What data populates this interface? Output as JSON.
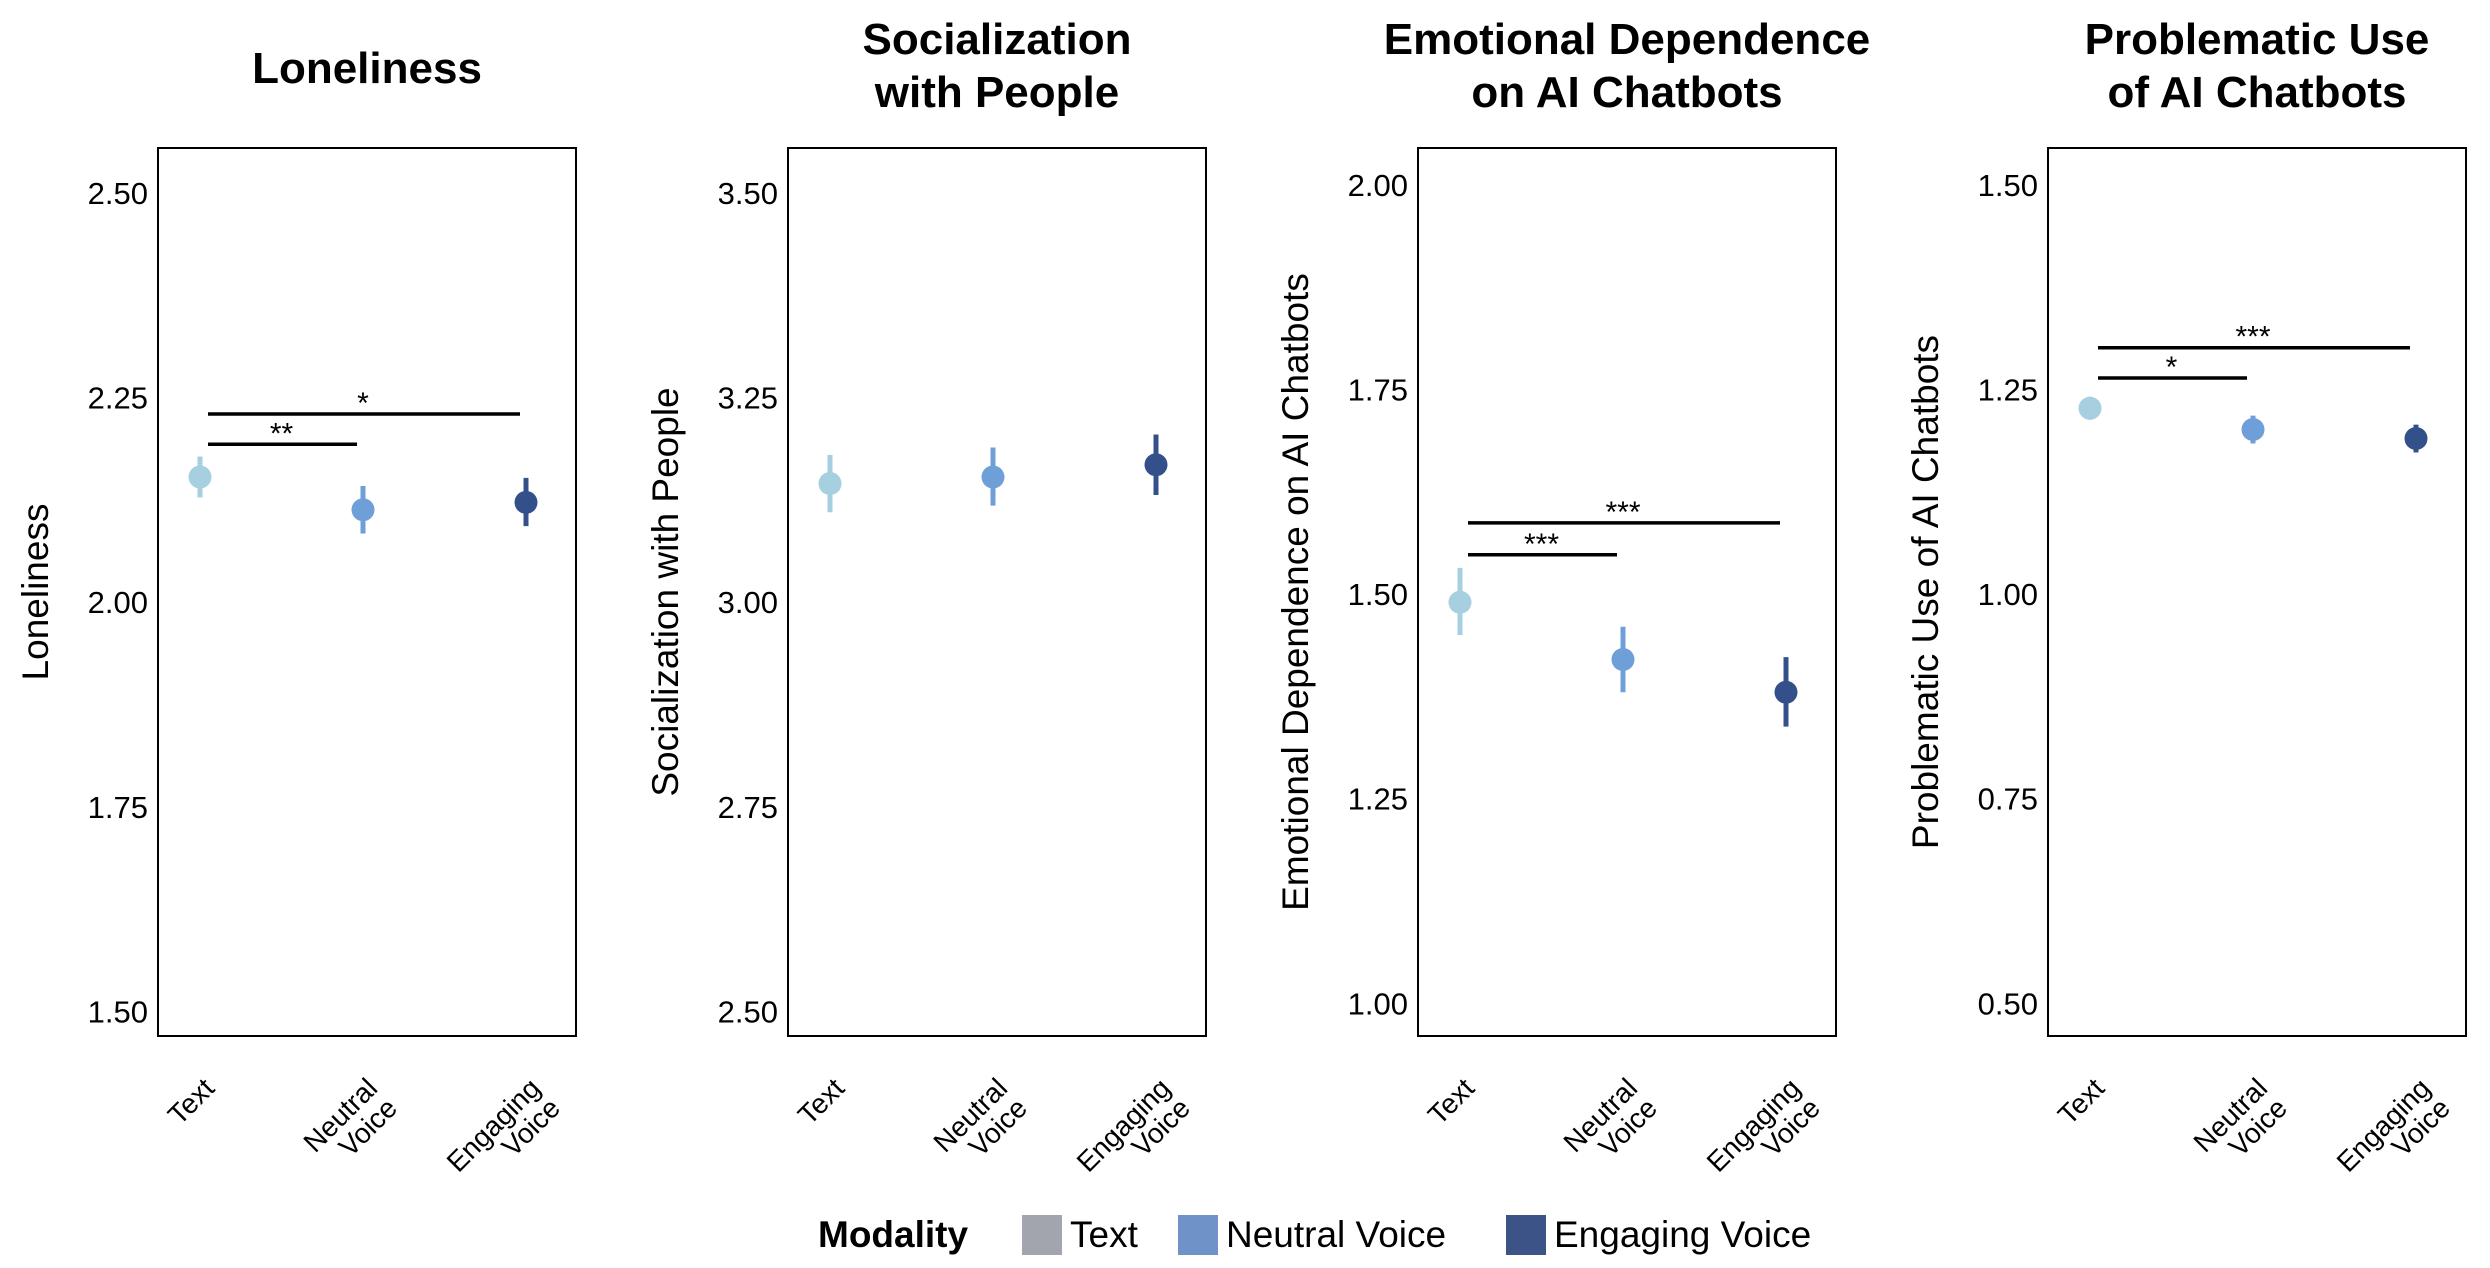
{
  "colors": {
    "text_point": "#a6cfe0",
    "neutral_point": "#6f9fd8",
    "engaging_point": "#34508a",
    "legend_text_key": "#a3a5ae",
    "legend_neutral_key": "#6f93c8",
    "legend_engaging_key": "#3c5388"
  },
  "legend": {
    "title": "Modality",
    "items": [
      "Text",
      "Neutral Voice",
      "Engaging Voice"
    ]
  },
  "chart_data": [
    {
      "type": "scatter",
      "title": [
        "Loneliness"
      ],
      "ylabel": "Loneliness",
      "xlabel": "",
      "categories": [
        [
          "Text"
        ],
        [
          "Neutral",
          "Voice"
        ],
        [
          "Engaging",
          "Voice"
        ]
      ],
      "values": [
        2.153,
        2.113,
        2.122
      ],
      "ci_low": [
        2.128,
        2.084,
        2.093
      ],
      "ci_high": [
        2.178,
        2.142,
        2.152
      ],
      "ylim": [
        1.47,
        2.555
      ],
      "yticks": [
        1.5,
        1.75,
        2.0,
        2.25,
        2.5
      ],
      "yticklabels": [
        "1.50",
        "1.75",
        "2.00",
        "2.25",
        "2.50"
      ],
      "significance": [
        {
          "from": 0,
          "to": 1,
          "label": "**",
          "y": 2.193
        },
        {
          "from": 0,
          "to": 2,
          "label": "*",
          "y": 2.23
        }
      ]
    },
    {
      "type": "scatter",
      "title": [
        "Socialization",
        "with People"
      ],
      "ylabel": "Socialization with People",
      "xlabel": "",
      "categories": [
        [
          "Text"
        ],
        [
          "Neutral",
          "Voice"
        ],
        [
          "Engaging",
          "Voice"
        ]
      ],
      "values": [
        3.145,
        3.153,
        3.168
      ],
      "ci_low": [
        3.11,
        3.118,
        3.131
      ],
      "ci_high": [
        3.18,
        3.189,
        3.205
      ],
      "ylim": [
        2.47,
        3.555
      ],
      "yticks": [
        2.5,
        2.75,
        3.0,
        3.25,
        3.5
      ],
      "yticklabels": [
        "2.50",
        "2.75",
        "3.00",
        "3.25",
        "3.50"
      ],
      "significance": []
    },
    {
      "type": "scatter",
      "title": [
        "Emotional Dependence",
        "on AI Chatbots"
      ],
      "ylabel": "Emotional Dependence on AI Chatbots",
      "xlabel": "",
      "categories": [
        [
          "Text"
        ],
        [
          "Neutral",
          "Voice"
        ],
        [
          "Engaging",
          "Voice"
        ]
      ],
      "values": [
        1.49,
        1.42,
        1.38
      ],
      "ci_low": [
        1.45,
        1.38,
        1.338
      ],
      "ci_high": [
        1.532,
        1.46,
        1.423
      ],
      "ylim": [
        0.96,
        2.045
      ],
      "yticks": [
        1.0,
        1.25,
        1.5,
        1.75,
        2.0
      ],
      "yticklabels": [
        "1.00",
        "1.25",
        "1.50",
        "1.75",
        "2.00"
      ],
      "significance": [
        {
          "from": 0,
          "to": 1,
          "label": "***",
          "y": 1.548
        },
        {
          "from": 0,
          "to": 2,
          "label": "***",
          "y": 1.587
        }
      ]
    },
    {
      "type": "scatter",
      "title": [
        "Problematic Use",
        "of AI Chatbots"
      ],
      "ylabel": "Problematic Use of AI Chatbots",
      "xlabel": "",
      "categories": [
        [
          "Text"
        ],
        [
          "Neutral",
          "Voice"
        ],
        [
          "Engaging",
          "Voice"
        ]
      ],
      "values": [
        1.227,
        1.201,
        1.19
      ],
      "ci_low": [
        1.213,
        1.184,
        1.173
      ],
      "ci_high": [
        1.241,
        1.218,
        1.207
      ],
      "ylim": [
        0.46,
        1.545
      ],
      "yticks": [
        0.5,
        0.75,
        1.0,
        1.25,
        1.5
      ],
      "yticklabels": [
        "0.50",
        "0.75",
        "1.00",
        "1.25",
        "1.50"
      ],
      "significance": [
        {
          "from": 0,
          "to": 1,
          "label": "*",
          "y": 1.264
        },
        {
          "from": 0,
          "to": 2,
          "label": "***",
          "y": 1.301
        }
      ]
    }
  ]
}
